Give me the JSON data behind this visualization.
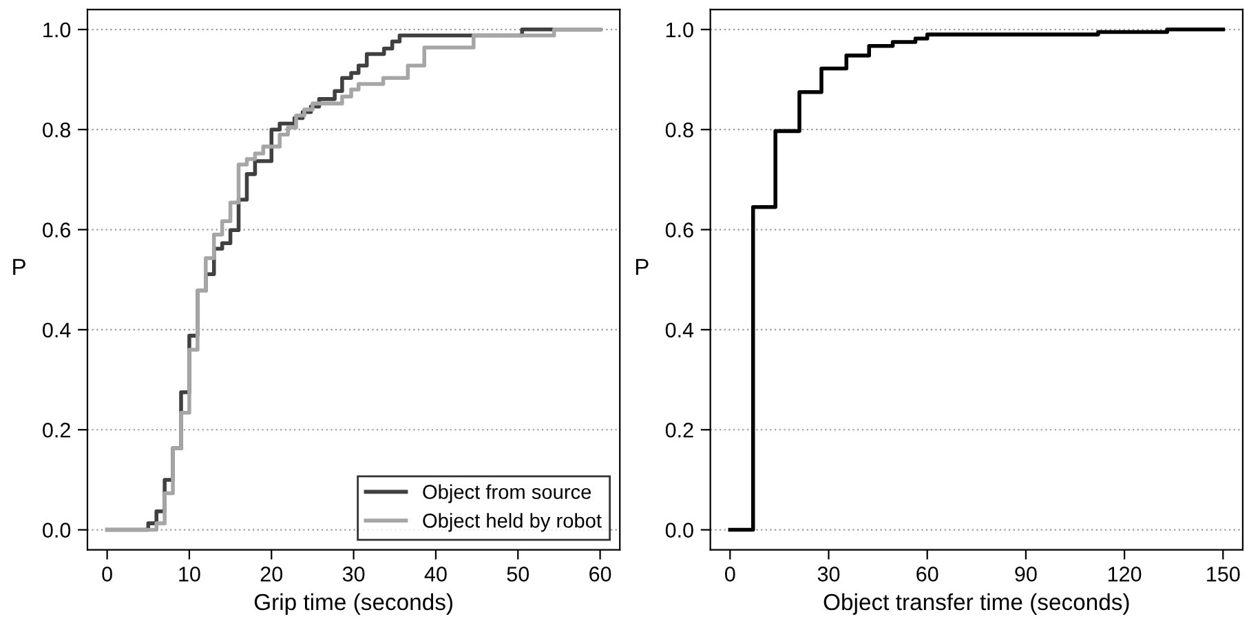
{
  "chart_data": [
    {
      "type": "step",
      "xlabel": "Grip time (seconds)",
      "ylabel": "P",
      "xlim": [
        -2.4,
        62.4
      ],
      "ylim": [
        -0.04,
        1.04
      ],
      "xticks": [
        0,
        10,
        20,
        30,
        40,
        50,
        60
      ],
      "yticks": [
        {
          "value": 0,
          "label": "0.0"
        },
        {
          "value": 0.2,
          "label": "0.2"
        },
        {
          "value": 0.4,
          "label": "0.4"
        },
        {
          "value": 0.6,
          "label": "0.6"
        },
        {
          "value": 0.8,
          "label": "0.8"
        },
        {
          "value": 1,
          "label": "1.0"
        }
      ],
      "grid": "y",
      "legend": "bottom right",
      "series": [
        {
          "name": "Object from source",
          "color": "#404040",
          "x": [
            0,
            5,
            6,
            7,
            8,
            9,
            10,
            11,
            12,
            13,
            14,
            15,
            16,
            17,
            18,
            20,
            21,
            22.8,
            23.8,
            24.8,
            25.8,
            27.7,
            28.6,
            29.7,
            30.6,
            31.6,
            33.7,
            34.7,
            35.6,
            50.5,
            60
          ],
          "values": [
            0,
            0.013,
            0.037,
            0.1,
            0.163,
            0.275,
            0.388,
            0.478,
            0.511,
            0.562,
            0.573,
            0.599,
            0.66,
            0.711,
            0.737,
            0.8,
            0.812,
            0.823,
            0.835,
            0.846,
            0.861,
            0.877,
            0.903,
            0.913,
            0.928,
            0.951,
            0.962,
            0.976,
            0.988,
            1.0,
            1.0
          ]
        },
        {
          "name": "Object held by robot",
          "color": "#a6a6a6",
          "x": [
            0,
            6,
            7,
            8,
            9,
            10,
            11,
            12,
            13,
            14,
            15,
            16,
            17,
            18,
            19,
            21,
            22,
            23,
            24,
            25,
            28.6,
            29.7,
            30.6,
            33.6,
            36.6,
            38.6,
            44.6,
            54.4,
            60
          ],
          "values": [
            0,
            0.013,
            0.073,
            0.163,
            0.234,
            0.36,
            0.478,
            0.543,
            0.59,
            0.617,
            0.654,
            0.73,
            0.741,
            0.752,
            0.766,
            0.79,
            0.804,
            0.828,
            0.84,
            0.852,
            0.866,
            0.88,
            0.891,
            0.903,
            0.928,
            0.964,
            0.988,
            1.0,
            1.0
          ]
        }
      ]
    },
    {
      "type": "step",
      "xlabel": "Object transfer time (seconds)",
      "ylabel": "P",
      "xlim": [
        -6,
        156
      ],
      "ylim": [
        -0.04,
        1.04
      ],
      "xticks": [
        0,
        30,
        60,
        90,
        120,
        150
      ],
      "yticks": [
        {
          "value": 0,
          "label": "0.0"
        },
        {
          "value": 0.2,
          "label": "0.2"
        },
        {
          "value": 0.4,
          "label": "0.4"
        },
        {
          "value": 0.6,
          "label": "0.6"
        },
        {
          "value": 0.8,
          "label": "0.8"
        },
        {
          "value": 1,
          "label": "1.0"
        }
      ],
      "grid": "y",
      "series": [
        {
          "color": "#000000",
          "x": [
            0,
            7,
            13.8,
            21.1,
            27.8,
            35.4,
            42.3,
            49.5,
            56.4,
            60,
            112,
            133,
            150
          ],
          "values": [
            0,
            0.645,
            0.797,
            0.875,
            0.922,
            0.948,
            0.967,
            0.975,
            0.982,
            0.99,
            0.995,
            1.0,
            1.0
          ]
        }
      ]
    }
  ]
}
